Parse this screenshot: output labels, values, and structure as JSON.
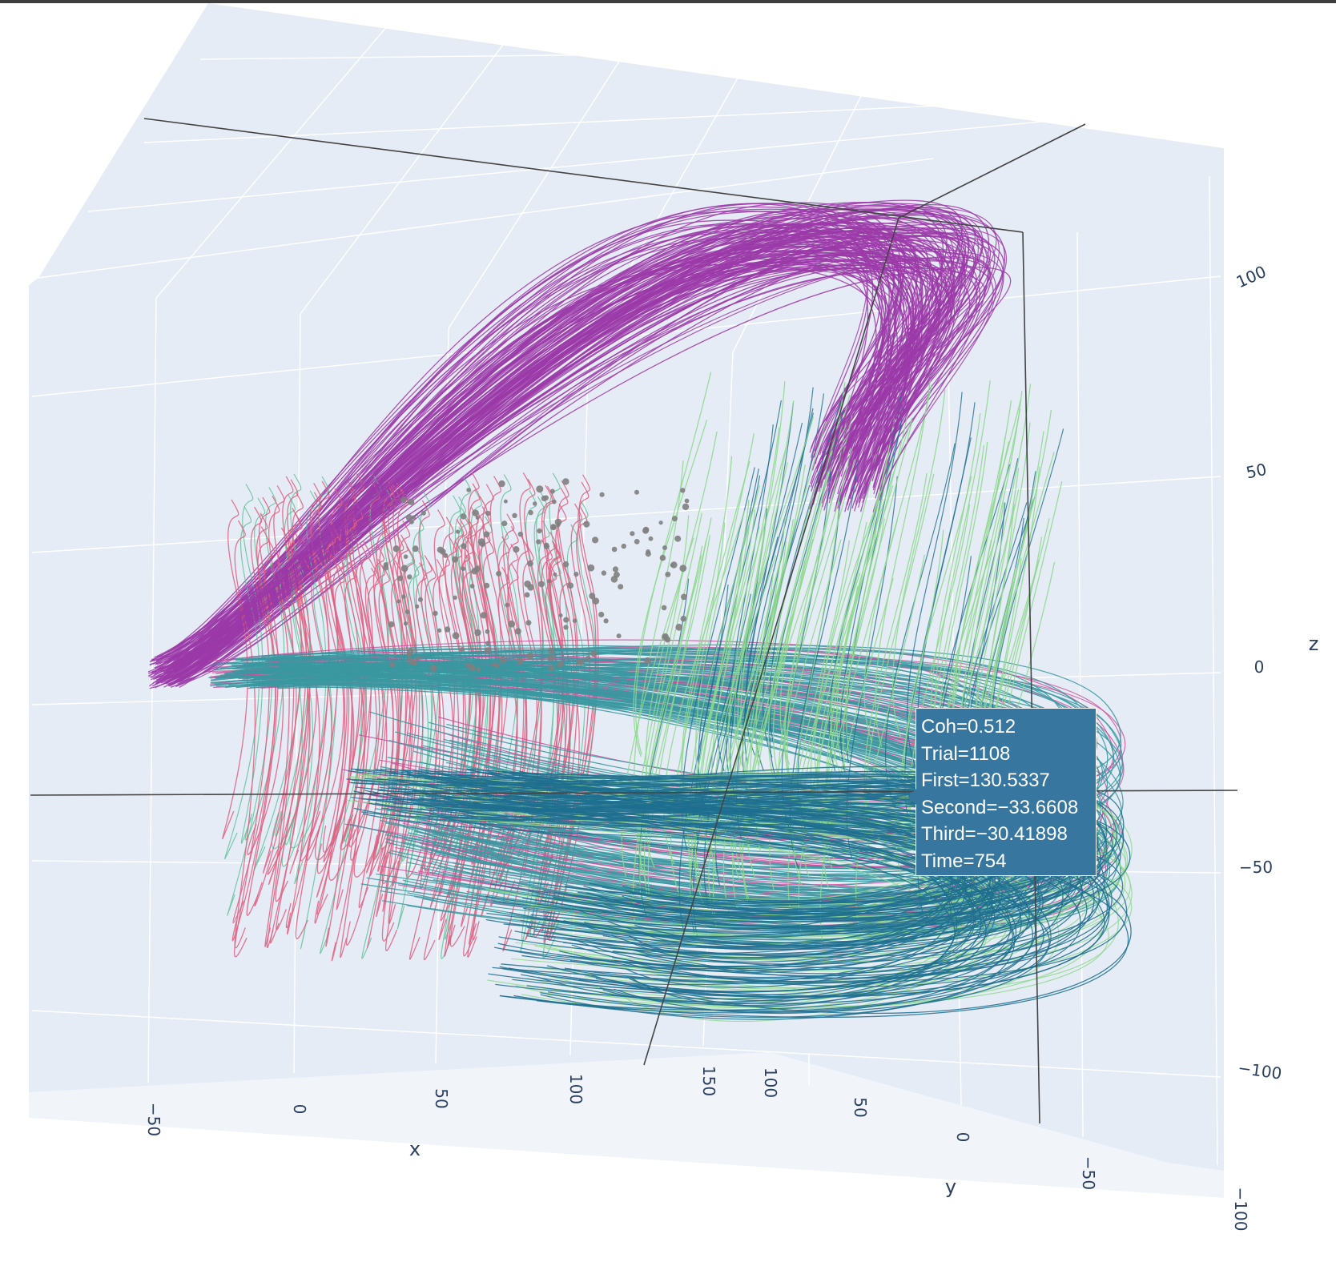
{
  "chart_data": {
    "type": "line",
    "projection": "3d",
    "title": "",
    "axes": {
      "x": {
        "title": "x",
        "ticks": [
          "−50",
          "0",
          "50",
          "100",
          "150"
        ],
        "tick_values": [
          -50,
          0,
          50,
          100,
          150
        ]
      },
      "y": {
        "title": "y",
        "ticks": [
          "100",
          "50",
          "0",
          "−50",
          "−100"
        ],
        "tick_values": [
          100,
          50,
          0,
          -50,
          -100
        ]
      },
      "z": {
        "title": "z",
        "ticks": [
          "100",
          "50",
          "0",
          "−50",
          "−100"
        ],
        "tick_values": [
          100,
          50,
          0,
          -50,
          -100
        ]
      }
    },
    "background_color": "#e5ecf6",
    "grid": true,
    "series_colors": [
      "#1f6e8f",
      "#3a98a0",
      "#5fbf96",
      "#8dd88d",
      "#df5f7f",
      "#cc4c98",
      "#9b3aa8",
      "#7a3aa0"
    ],
    "marker_color": "#808080",
    "series_groups": [
      {
        "color": "#9b3aa8",
        "count": 110
      },
      {
        "color": "#df5f7f",
        "count": 110
      },
      {
        "color": "#3a98a0",
        "count": 110
      },
      {
        "color": "#8dd88d",
        "count": 110
      },
      {
        "color": "#1f6e8f",
        "count": 110
      }
    ],
    "hover": {
      "Coh": 0.512,
      "Trial": 1108,
      "First": 130.5337,
      "Second": -33.6608,
      "Third": -30.41898,
      "Time": 754
    }
  },
  "tooltip": {
    "lines": [
      "Coh=0.512",
      "Trial=1108",
      "First=130.5337",
      "Second=−33.6608",
      "Third=−30.41898",
      "Time=754"
    ],
    "background": "#36769f"
  }
}
